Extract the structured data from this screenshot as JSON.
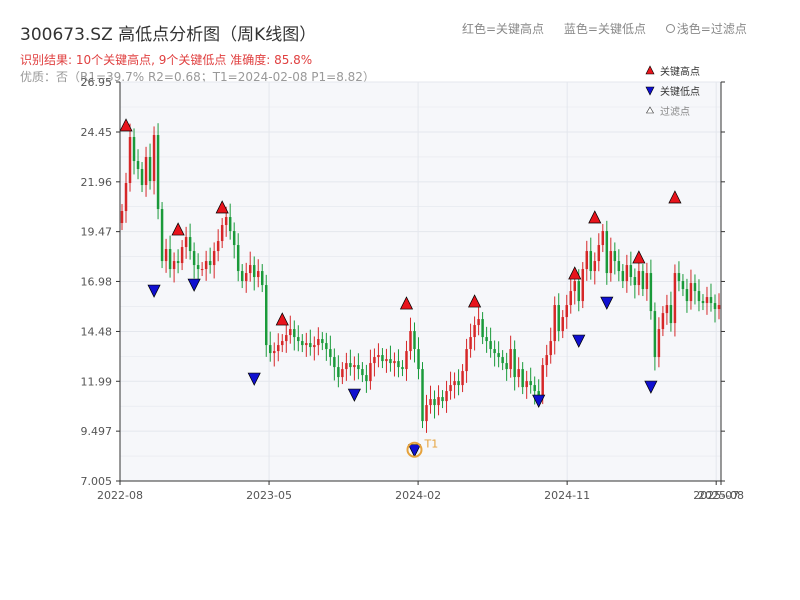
{
  "header": {
    "title": "300673.SZ 高低点分析图（周K线图）",
    "subtitle": "识别结果: 10个关键高点, 9个关键低点  准确度: 85.8%",
    "quality": "优质：否（R1=39.7%  R2=0.68；T1=2024-02-08 P1=8.82）",
    "legend_red": "红色=关键高点",
    "legend_blue": "蓝色=关键低点",
    "legend_light": "浅色=过滤点"
  },
  "legend": {
    "high": "关键高点",
    "low": "关键低点",
    "filtered": "过滤点"
  },
  "colors": {
    "up": "#d62728",
    "down": "#1a9a3a",
    "high_marker": "#e8141c",
    "low_marker": "#1010d0",
    "t1": "#e6a23c",
    "plot_bg": "#f6f7fa",
    "grid": "#e4e7ed"
  },
  "chart_data": {
    "type": "candlestick",
    "ylim": [
      7.005,
      26.95
    ],
    "yticks": [
      "26.95",
      "24.45",
      "21.96",
      "19.47",
      "16.98",
      "14.48",
      "11.99",
      "9.497",
      "7.005"
    ],
    "xticks": [
      "2022-08",
      "2023-05",
      "2024-02",
      "2024-11",
      "2025-07",
      "2025-08"
    ],
    "close_series": [
      20.5,
      21.9,
      24.2,
      23.0,
      22.6,
      21.8,
      23.2,
      22.0,
      24.3,
      20.6,
      18.0,
      18.6,
      17.6,
      18.0,
      17.9,
      18.7,
      19.2,
      18.5,
      17.8,
      17.6,
      17.6,
      18.0,
      17.8,
      18.5,
      19.0,
      19.8,
      20.2,
      19.5,
      18.8,
      17.5,
      17.0,
      17.4,
      17.8,
      17.2,
      17.5,
      16.8,
      13.8,
      13.4,
      13.5,
      13.8,
      14.0,
      14.3,
      14.6,
      14.2,
      14.0,
      13.8,
      13.9,
      13.7,
      13.8,
      14.1,
      13.9,
      13.6,
      13.2,
      12.7,
      12.2,
      12.6,
      12.9,
      12.7,
      12.8,
      12.6,
      12.3,
      12.0,
      12.9,
      13.2,
      13.3,
      13.0,
      13.1,
      12.9,
      13.0,
      12.7,
      12.6,
      13.5,
      14.5,
      13.6,
      12.6,
      10.0,
      10.8,
      11.1,
      10.8,
      11.2,
      11.0,
      11.5,
      11.8,
      12.0,
      11.8,
      12.5,
      13.6,
      14.2,
      14.8,
      15.1,
      14.2,
      14.0,
      13.6,
      13.4,
      13.2,
      12.9,
      12.6,
      13.6,
      12.2,
      12.6,
      11.7,
      12.0,
      11.8,
      11.5,
      11.2,
      12.8,
      13.3,
      14.0,
      15.8,
      14.5,
      15.2,
      15.8,
      16.5,
      17.0,
      16.0,
      17.6,
      18.5,
      17.5,
      18.0,
      18.8,
      19.5,
      17.4,
      18.5,
      18.0,
      17.5,
      17.0,
      17.8,
      17.2,
      16.8,
      17.5,
      16.6,
      17.4,
      15.5,
      13.2,
      14.6,
      15.4,
      15.8,
      14.9,
      17.4,
      17.0,
      16.6,
      16.0,
      16.9,
      16.5,
      16.0,
      15.9,
      16.2,
      15.9,
      15.6,
      15.8
    ],
    "key_highs": [
      {
        "i": 1,
        "v": 24.5
      },
      {
        "i": 14,
        "v": 19.3
      },
      {
        "i": 25,
        "v": 20.4
      },
      {
        "i": 40,
        "v": 14.8
      },
      {
        "i": 71,
        "v": 15.6
      },
      {
        "i": 88,
        "v": 15.7
      },
      {
        "i": 113,
        "v": 17.1
      },
      {
        "i": 118,
        "v": 19.9
      },
      {
        "i": 129,
        "v": 17.9
      },
      {
        "i": 138,
        "v": 20.9
      }
    ],
    "key_lows": [
      {
        "i": 8,
        "v": 16.8
      },
      {
        "i": 18,
        "v": 17.1
      },
      {
        "i": 33,
        "v": 12.4
      },
      {
        "i": 58,
        "v": 11.6
      },
      {
        "i": 73,
        "v": 8.82
      },
      {
        "i": 104,
        "v": 11.3
      },
      {
        "i": 114,
        "v": 14.3
      },
      {
        "i": 121,
        "v": 16.2
      },
      {
        "i": 132,
        "v": 12.0
      }
    ],
    "t1": {
      "i": 73,
      "v": 8.82,
      "label": "T1"
    }
  }
}
